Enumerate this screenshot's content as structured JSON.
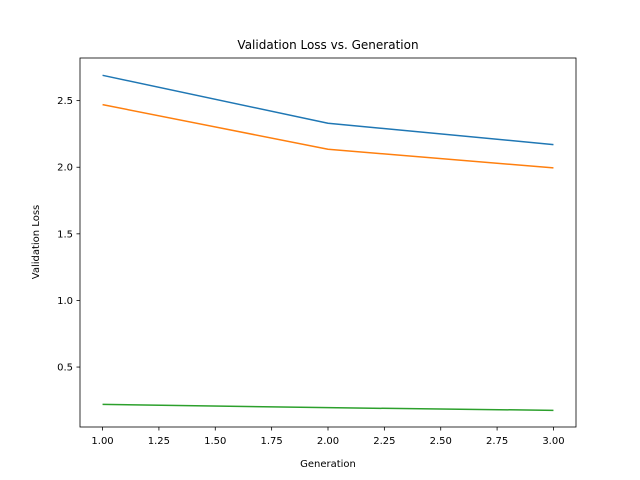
{
  "chart_data": {
    "type": "line",
    "title": "Validation Loss vs. Generation",
    "xlabel": "Generation",
    "ylabel": "Validation Loss",
    "xlim": [
      0.9,
      3.1
    ],
    "ylim": [
      0.05,
      2.82
    ],
    "xticks": [
      1.0,
      1.25,
      1.5,
      1.75,
      2.0,
      2.25,
      2.5,
      2.75,
      3.0
    ],
    "xtick_labels": [
      "1.00",
      "1.25",
      "1.50",
      "1.75",
      "2.00",
      "2.25",
      "2.50",
      "2.75",
      "3.00"
    ],
    "yticks": [
      0.5,
      1.0,
      1.5,
      2.0,
      2.5
    ],
    "ytick_labels": [
      "0.5",
      "1.0",
      "1.5",
      "2.0",
      "2.5"
    ],
    "grid": false,
    "x": [
      1,
      2,
      3
    ],
    "series": [
      {
        "color": "#1f77b4",
        "values": [
          2.69,
          2.33,
          2.17
        ]
      },
      {
        "color": "#ff7f0e",
        "values": [
          2.47,
          2.135,
          1.995
        ]
      },
      {
        "color": "#2ca02c",
        "values": [
          0.22,
          0.195,
          0.175
        ]
      }
    ]
  }
}
